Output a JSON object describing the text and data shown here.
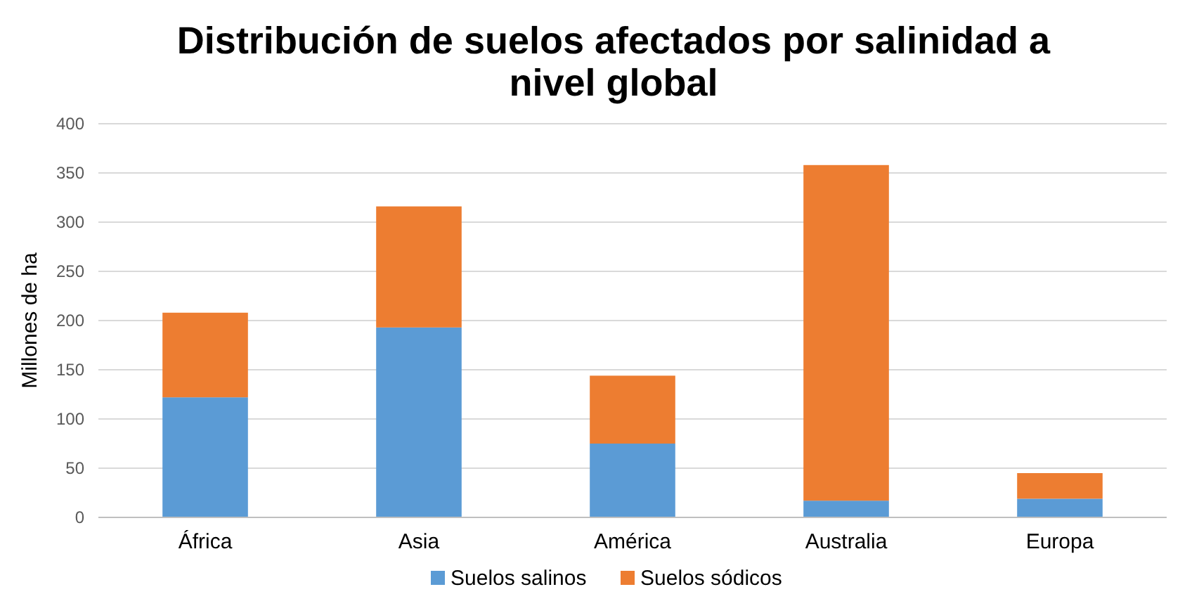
{
  "chart_data": {
    "type": "bar",
    "title": "Distribución de suelos afectados por salinidad a nivel global",
    "ylabel": "Millones de ha",
    "categories": [
      "África",
      "Asia",
      "América",
      "Australia",
      "Europa"
    ],
    "series": [
      {
        "name": "Suelos salinos",
        "color": "#5b9bd5",
        "values": [
          122,
          193,
          75,
          17,
          19
        ]
      },
      {
        "name": "Suelos sódicos",
        "color": "#ed7d31",
        "values": [
          86,
          123,
          69,
          341,
          26
        ]
      }
    ],
    "stacked": true,
    "ylim": [
      0,
      400
    ],
    "yticks": [
      0,
      50,
      100,
      150,
      200,
      250,
      300,
      350,
      400
    ],
    "grid": "y",
    "legend": "bottom"
  }
}
